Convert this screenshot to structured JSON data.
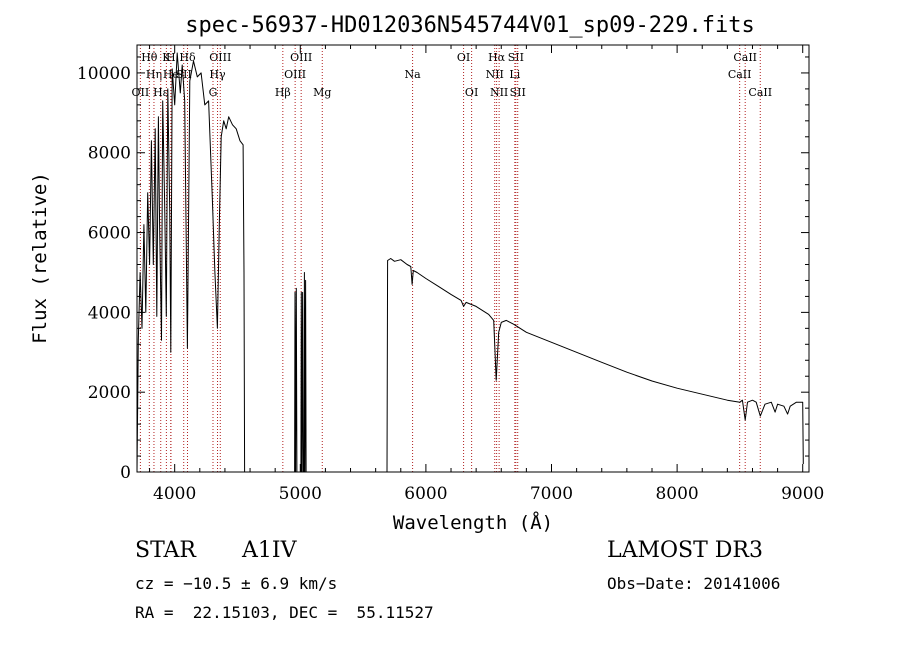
{
  "chart_data": {
    "type": "line",
    "title": "spec-56937-HD012036N545744V01_sp09-229.fits",
    "xlabel": "Wavelength (Å)",
    "ylabel": "Flux (relative)",
    "xlim": [
      3700,
      9050
    ],
    "ylim": [
      0,
      10700
    ],
    "x_ticks": [
      4000,
      5000,
      6000,
      7000,
      8000,
      9000
    ],
    "y_ticks": [
      0,
      2000,
      4000,
      6000,
      8000,
      10000
    ],
    "x_tick_labels": [
      "4000",
      "5000",
      "6000",
      "7000",
      "8000",
      "9000"
    ],
    "y_tick_labels": [
      "0",
      "2000",
      "4000",
      "6000",
      "8000",
      "10000"
    ],
    "grid": false,
    "line_color": "#000000",
    "marker_color": "#b22222",
    "series": [
      {
        "segments": [
          [
            [
              3700,
              0
            ],
            [
              3710,
              3300
            ],
            [
              3725,
              5000
            ],
            [
              3740,
              3600
            ],
            [
              3755,
              6200
            ],
            [
              3770,
              4000
            ],
            [
              3785,
              7000
            ],
            [
              3800,
              5200
            ],
            [
              3815,
              8300
            ],
            [
              3830,
              5200
            ],
            [
              3845,
              8600
            ],
            [
              3858,
              3900
            ],
            [
              3870,
              8900
            ],
            [
              3880,
              6200
            ],
            [
              3895,
              3300
            ],
            [
              3905,
              9300
            ],
            [
              3920,
              6800
            ],
            [
              3933,
              3900
            ],
            [
              3945,
              9600
            ],
            [
              3960,
              6600
            ],
            [
              3969,
              3000
            ],
            [
              3980,
              10100
            ],
            [
              4000,
              9200
            ],
            [
              4020,
              10500
            ],
            [
              4045,
              9500
            ],
            [
              4060,
              10200
            ],
            [
              4080,
              9300
            ],
            [
              4101,
              3100
            ],
            [
              4120,
              9800
            ],
            [
              4150,
              10300
            ],
            [
              4180,
              9900
            ],
            [
              4210,
              10000
            ],
            [
              4240,
              9200
            ],
            [
              4270,
              9300
            ],
            [
              4300,
              6800
            ],
            [
              4320,
              5000
            ],
            [
              4340,
              3600
            ],
            [
              4355,
              6200
            ],
            [
              4370,
              8400
            ],
            [
              4390,
              8800
            ],
            [
              4410,
              8600
            ],
            [
              4430,
              8900
            ],
            [
              4460,
              8700
            ],
            [
              4490,
              8600
            ],
            [
              4520,
              8300
            ],
            [
              4545,
              8200
            ],
            [
              4552,
              5000
            ],
            [
              4557,
              0
            ]
          ],
          [
            [
              4955,
              0
            ],
            [
              4958,
              4500
            ],
            [
              4963,
              0
            ],
            [
              4968,
              4600
            ],
            [
              4973,
              0
            ],
            [
              5005,
              0
            ],
            [
              5008,
              4500
            ],
            [
              5013,
              0
            ],
            [
              5018,
              4500
            ],
            [
              5023,
              0
            ],
            [
              5030,
              0
            ],
            [
              5033,
              5000
            ],
            [
              5037,
              0
            ],
            [
              5042,
              4800
            ],
            [
              5046,
              0
            ]
          ],
          [
            [
              5690,
              0
            ],
            [
              5695,
              5300
            ],
            [
              5720,
              5350
            ],
            [
              5750,
              5280
            ],
            [
              5800,
              5320
            ],
            [
              5850,
              5200
            ],
            [
              5880,
              5150
            ],
            [
              5890,
              4700
            ],
            [
              5900,
              5050
            ],
            [
              5930,
              5000
            ],
            [
              6000,
              4850
            ],
            [
              6100,
              4650
            ],
            [
              6200,
              4450
            ],
            [
              6280,
              4300
            ],
            [
              6300,
              4150
            ],
            [
              6320,
              4250
            ],
            [
              6400,
              4150
            ],
            [
              6500,
              3950
            ],
            [
              6540,
              3800
            ],
            [
              6560,
              2300
            ],
            [
              6580,
              3500
            ],
            [
              6600,
              3750
            ],
            [
              6640,
              3800
            ],
            [
              6700,
              3700
            ],
            [
              6800,
              3500
            ],
            [
              7000,
              3250
            ],
            [
              7200,
              3000
            ],
            [
              7400,
              2750
            ],
            [
              7600,
              2500
            ],
            [
              7800,
              2280
            ],
            [
              8000,
              2100
            ],
            [
              8200,
              1950
            ],
            [
              8400,
              1800
            ],
            [
              8500,
              1750
            ],
            [
              8520,
              1800
            ],
            [
              8542,
              1300
            ],
            [
              8560,
              1750
            ],
            [
              8600,
              1800
            ],
            [
              8630,
              1750
            ],
            [
              8662,
              1400
            ],
            [
              8700,
              1700
            ],
            [
              8750,
              1750
            ],
            [
              8780,
              1500
            ],
            [
              8800,
              1700
            ],
            [
              8850,
              1650
            ],
            [
              8880,
              1450
            ],
            [
              8900,
              1650
            ],
            [
              8950,
              1750
            ],
            [
              9000,
              1750
            ],
            [
              9005,
              200
            ]
          ]
        ]
      }
    ],
    "line_markers": [
      {
        "label": "Hθ",
        "x": 3798,
        "row": 1
      },
      {
        "label": "Hη",
        "x": 3835,
        "row": 2
      },
      {
        "label": "OII",
        "x": 3727,
        "row": 3
      },
      {
        "label": "Hε",
        "x": 3889,
        "row": 3
      },
      {
        "label": "He",
        "x": 3970,
        "row": 2
      },
      {
        "label": "K",
        "x": 3934,
        "row": 1
      },
      {
        "label": "H",
        "x": 3969,
        "row": 1
      },
      {
        "label": "Hδ",
        "x": 4102,
        "row": 1
      },
      {
        "label": "SII",
        "x": 4072,
        "row": 2
      },
      {
        "label": "OIII",
        "x": 4363,
        "row": 1
      },
      {
        "label": "Hγ",
        "x": 4341,
        "row": 2
      },
      {
        "label": "G",
        "x": 4305,
        "row": 3
      },
      {
        "label": "Hβ",
        "x": 4861,
        "row": 3
      },
      {
        "label": "OIII",
        "x": 5007,
        "row": 1
      },
      {
        "label": "OIII",
        "x": 4959,
        "row": 2
      },
      {
        "label": "Mg",
        "x": 5175,
        "row": 3
      },
      {
        "label": "Na",
        "x": 5894,
        "row": 2
      },
      {
        "label": "OI",
        "x": 6300,
        "row": 1
      },
      {
        "label": "OI",
        "x": 6364,
        "row": 3
      },
      {
        "label": "Hα",
        "x": 6563,
        "row": 1
      },
      {
        "label": "NII",
        "x": 6548,
        "row": 2
      },
      {
        "label": "NII",
        "x": 6583,
        "row": 3
      },
      {
        "label": "SII",
        "x": 6716,
        "row": 1
      },
      {
        "label": "Li",
        "x": 6708,
        "row": 2
      },
      {
        "label": "SII",
        "x": 6731,
        "row": 3
      },
      {
        "label": "CaII",
        "x": 8542,
        "row": 1
      },
      {
        "label": "CaII",
        "x": 8498,
        "row": 2
      },
      {
        "label": "CaII",
        "x": 8662,
        "row": 3
      }
    ]
  },
  "info": {
    "class": "STAR",
    "subclass": "A1IV",
    "survey": "LAMOST DR3",
    "cz": "cz = −10.5 ± 6.9 km/s",
    "obs_date": "Obs−Date: 20141006",
    "coords": "RA =  22.15103, DEC =  55.11527"
  }
}
